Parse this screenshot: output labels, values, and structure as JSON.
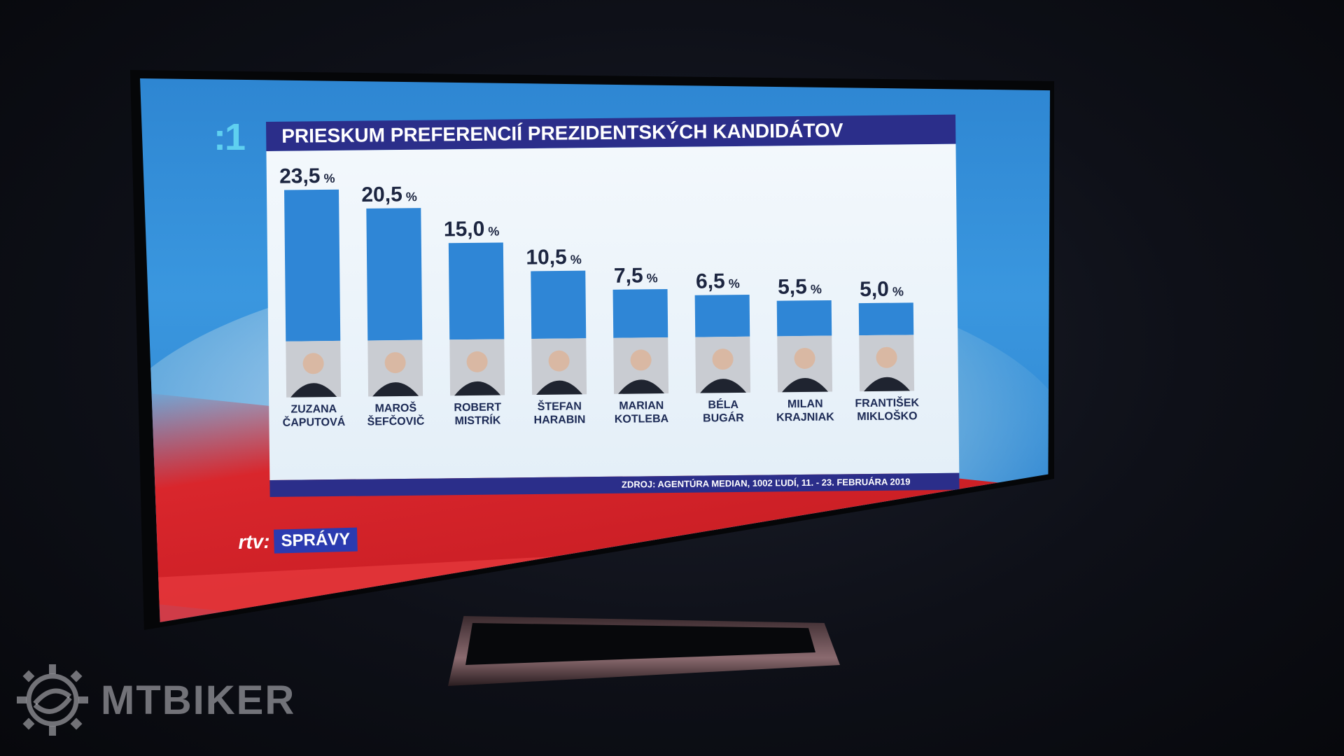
{
  "channel": {
    "logo": ":1"
  },
  "chart_data": {
    "type": "bar",
    "title": "PRIESKUM PREFERENCIÍ PREZIDENTSKÝCH KANDIDÁTOV",
    "categories": [
      [
        "ZUZANA",
        "ČAPUTOVÁ"
      ],
      [
        "MAROŠ",
        "ŠEFČOVIČ"
      ],
      [
        "ROBERT",
        "MISTRÍK"
      ],
      [
        "ŠTEFAN",
        "HARABIN"
      ],
      [
        "MARIAN",
        "KOTLEBA"
      ],
      [
        "BÉLA",
        "BUGÁR"
      ],
      [
        "MILAN",
        "KRAJNIAK"
      ],
      [
        "FRANTIŠEK",
        "MIKLOŠKO"
      ]
    ],
    "values": [
      23.5,
      20.5,
      15.0,
      10.5,
      7.5,
      6.5,
      5.5,
      5.0
    ],
    "value_labels": [
      "23,5",
      "20,5",
      "15,0",
      "10,5",
      "7,5",
      "6,5",
      "5,5",
      "5,0"
    ],
    "unit": "%",
    "bar_color": "#2f86d6",
    "source": "ZDROJ: AGENTÚRA MEDIAN, 1002 ĽUDÍ, 11. - 23. FEBRUÁRA 2019"
  },
  "news_tag": {
    "brand": "rtv:",
    "label": "SPRÁVY"
  },
  "watermark": {
    "text": "MTBIKER"
  }
}
